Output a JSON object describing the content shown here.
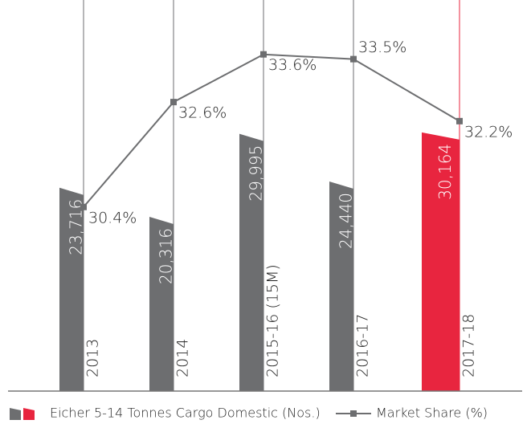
{
  "chart_data": {
    "type": "bar",
    "categories": [
      "2013",
      "2014",
      "2015-16 (15M)",
      "2016-17",
      "2017-18"
    ],
    "series": [
      {
        "name": "Eicher 5-14 Tonnes Cargo Domestic (Nos.)",
        "type": "bar",
        "color": "#6d6e70",
        "colors": [
          "#6d6e70",
          "#6d6e70",
          "#6d6e70",
          "#6d6e70",
          "#e8253f"
        ],
        "values": [
          23716,
          20316,
          29995,
          24440,
          30164
        ],
        "value_labels": [
          "23,716",
          "20,316",
          "29,995",
          "24,440",
          "30,164"
        ]
      },
      {
        "name": "Market Share (%)",
        "type": "line",
        "axis": "y2",
        "color": "#6d6e70",
        "values": [
          30.4,
          32.6,
          33.6,
          33.5,
          32.2
        ],
        "value_labels": [
          "30.4%",
          "32.6%",
          "33.6%",
          "33.5%",
          "32.2%"
        ]
      }
    ],
    "ylim": [
      0,
      45600
    ],
    "y2lim": [
      26.54,
      34.74
    ]
  }
}
